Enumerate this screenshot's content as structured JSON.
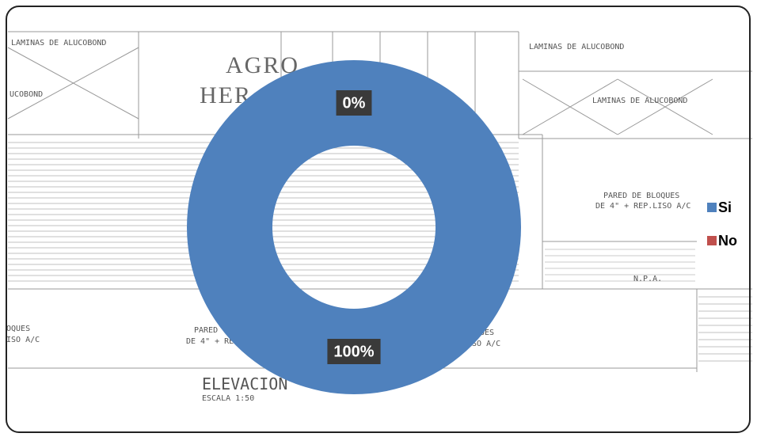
{
  "chart_data": {
    "type": "donut",
    "categories": [
      "Si",
      "No"
    ],
    "values": [
      100,
      0
    ],
    "value_labels": [
      "100%",
      "0%"
    ],
    "colors": [
      "#4f81bd",
      "#c0504d"
    ],
    "legend": "right"
  },
  "background_texts": [
    "LAMINAS DE ALUCOBOND",
    "UCOBOND",
    "AGRO",
    "HER",
    "LAMINAS DE ALUCOBOND",
    "LAMINAS DE ALUCOBOND",
    "PARED DE BLOQUES",
    "DE 4\" + REP.LISO A/C",
    "N.P.A.",
    "OQUES",
    "ISO A/C",
    "PARED",
    "DE 4\" + RE",
    "QUES",
    "USO A/C",
    "ELEVACION",
    "ESCALA 1:50"
  ]
}
